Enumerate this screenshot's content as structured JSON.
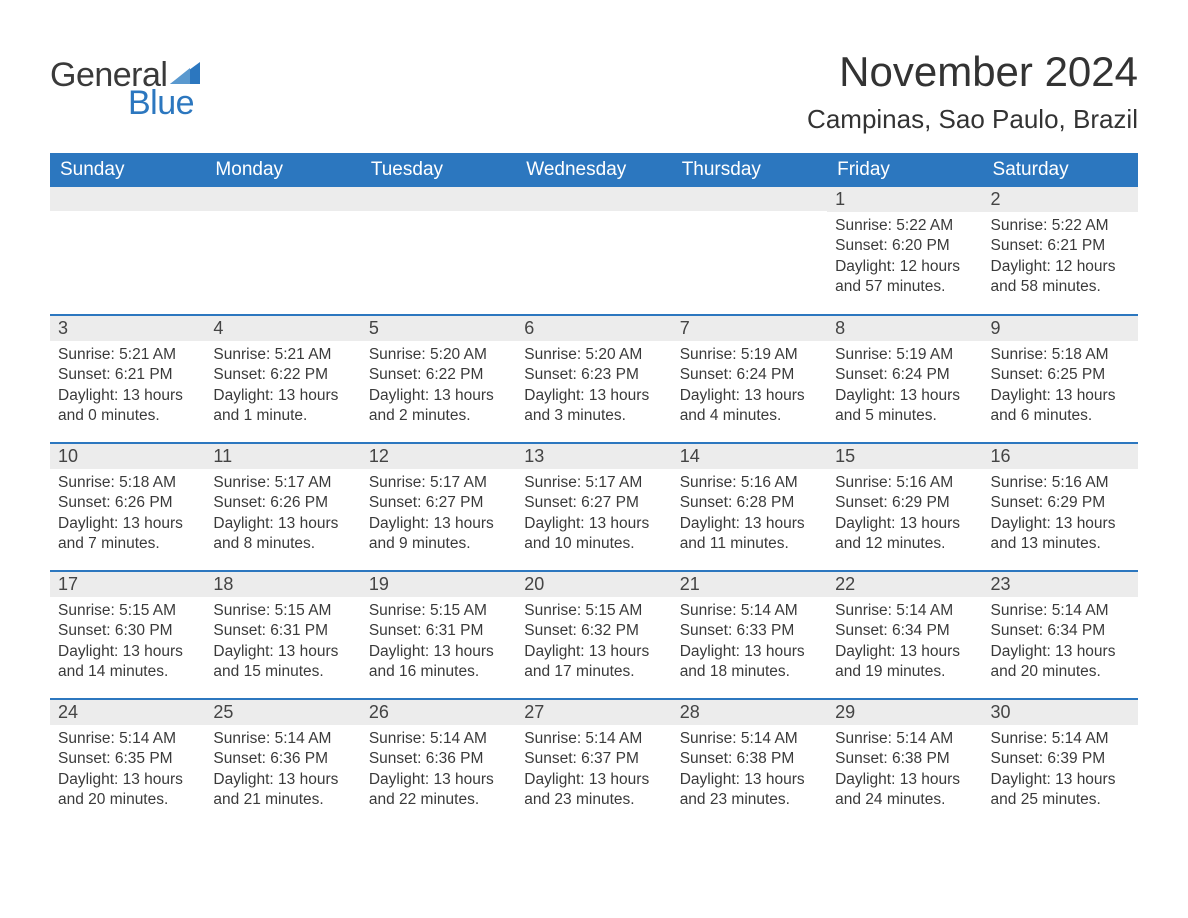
{
  "brand": {
    "word1": "General",
    "word2": "Blue"
  },
  "title": "November 2024",
  "location": "Campinas, Sao Paulo, Brazil",
  "colors": {
    "header_bg": "#2c77bf",
    "header_text": "#ffffff",
    "daynum_bg": "#ececec",
    "daynum_text": "#444444",
    "body_text": "#3a3a3a",
    "rule": "#2c77bf",
    "logo_gray": "#3a3a3a",
    "logo_blue": "#2c77bf",
    "page_bg": "#ffffff"
  },
  "label_sunrise": "Sunrise: ",
  "label_sunset": "Sunset: ",
  "label_daylight": "Daylight: ",
  "daysOfWeek": [
    "Sunday",
    "Monday",
    "Tuesday",
    "Wednesday",
    "Thursday",
    "Friday",
    "Saturday"
  ],
  "weeks": [
    [
      null,
      null,
      null,
      null,
      null,
      {
        "n": "1",
        "sunrise": "5:22 AM",
        "sunset": "6:20 PM",
        "daylight": "12 hours and 57 minutes."
      },
      {
        "n": "2",
        "sunrise": "5:22 AM",
        "sunset": "6:21 PM",
        "daylight": "12 hours and 58 minutes."
      }
    ],
    [
      {
        "n": "3",
        "sunrise": "5:21 AM",
        "sunset": "6:21 PM",
        "daylight": "13 hours and 0 minutes."
      },
      {
        "n": "4",
        "sunrise": "5:21 AM",
        "sunset": "6:22 PM",
        "daylight": "13 hours and 1 minute."
      },
      {
        "n": "5",
        "sunrise": "5:20 AM",
        "sunset": "6:22 PM",
        "daylight": "13 hours and 2 minutes."
      },
      {
        "n": "6",
        "sunrise": "5:20 AM",
        "sunset": "6:23 PM",
        "daylight": "13 hours and 3 minutes."
      },
      {
        "n": "7",
        "sunrise": "5:19 AM",
        "sunset": "6:24 PM",
        "daylight": "13 hours and 4 minutes."
      },
      {
        "n": "8",
        "sunrise": "5:19 AM",
        "sunset": "6:24 PM",
        "daylight": "13 hours and 5 minutes."
      },
      {
        "n": "9",
        "sunrise": "5:18 AM",
        "sunset": "6:25 PM",
        "daylight": "13 hours and 6 minutes."
      }
    ],
    [
      {
        "n": "10",
        "sunrise": "5:18 AM",
        "sunset": "6:26 PM",
        "daylight": "13 hours and 7 minutes."
      },
      {
        "n": "11",
        "sunrise": "5:17 AM",
        "sunset": "6:26 PM",
        "daylight": "13 hours and 8 minutes."
      },
      {
        "n": "12",
        "sunrise": "5:17 AM",
        "sunset": "6:27 PM",
        "daylight": "13 hours and 9 minutes."
      },
      {
        "n": "13",
        "sunrise": "5:17 AM",
        "sunset": "6:27 PM",
        "daylight": "13 hours and 10 minutes."
      },
      {
        "n": "14",
        "sunrise": "5:16 AM",
        "sunset": "6:28 PM",
        "daylight": "13 hours and 11 minutes."
      },
      {
        "n": "15",
        "sunrise": "5:16 AM",
        "sunset": "6:29 PM",
        "daylight": "13 hours and 12 minutes."
      },
      {
        "n": "16",
        "sunrise": "5:16 AM",
        "sunset": "6:29 PM",
        "daylight": "13 hours and 13 minutes."
      }
    ],
    [
      {
        "n": "17",
        "sunrise": "5:15 AM",
        "sunset": "6:30 PM",
        "daylight": "13 hours and 14 minutes."
      },
      {
        "n": "18",
        "sunrise": "5:15 AM",
        "sunset": "6:31 PM",
        "daylight": "13 hours and 15 minutes."
      },
      {
        "n": "19",
        "sunrise": "5:15 AM",
        "sunset": "6:31 PM",
        "daylight": "13 hours and 16 minutes."
      },
      {
        "n": "20",
        "sunrise": "5:15 AM",
        "sunset": "6:32 PM",
        "daylight": "13 hours and 17 minutes."
      },
      {
        "n": "21",
        "sunrise": "5:14 AM",
        "sunset": "6:33 PM",
        "daylight": "13 hours and 18 minutes."
      },
      {
        "n": "22",
        "sunrise": "5:14 AM",
        "sunset": "6:34 PM",
        "daylight": "13 hours and 19 minutes."
      },
      {
        "n": "23",
        "sunrise": "5:14 AM",
        "sunset": "6:34 PM",
        "daylight": "13 hours and 20 minutes."
      }
    ],
    [
      {
        "n": "24",
        "sunrise": "5:14 AM",
        "sunset": "6:35 PM",
        "daylight": "13 hours and 20 minutes."
      },
      {
        "n": "25",
        "sunrise": "5:14 AM",
        "sunset": "6:36 PM",
        "daylight": "13 hours and 21 minutes."
      },
      {
        "n": "26",
        "sunrise": "5:14 AM",
        "sunset": "6:36 PM",
        "daylight": "13 hours and 22 minutes."
      },
      {
        "n": "27",
        "sunrise": "5:14 AM",
        "sunset": "6:37 PM",
        "daylight": "13 hours and 23 minutes."
      },
      {
        "n": "28",
        "sunrise": "5:14 AM",
        "sunset": "6:38 PM",
        "daylight": "13 hours and 23 minutes."
      },
      {
        "n": "29",
        "sunrise": "5:14 AM",
        "sunset": "6:38 PM",
        "daylight": "13 hours and 24 minutes."
      },
      {
        "n": "30",
        "sunrise": "5:14 AM",
        "sunset": "6:39 PM",
        "daylight": "13 hours and 25 minutes."
      }
    ]
  ]
}
